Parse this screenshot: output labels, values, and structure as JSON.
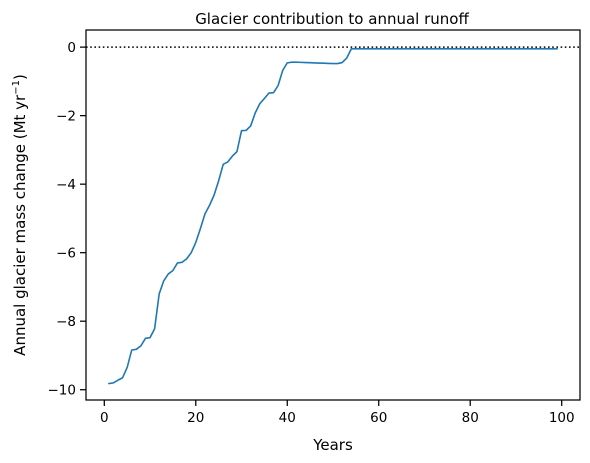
{
  "chart_data": {
    "type": "line",
    "title": "Glacier contribution to annual runoff",
    "xlabel": "Years",
    "ylabel_main": "Annual glacier mass change (Mt yr",
    "ylabel_sup": "−1",
    "ylabel_close": ")",
    "xlim": [
      -4,
      104
    ],
    "ylim": [
      -10.3,
      0.5
    ],
    "xticks": [
      0,
      20,
      40,
      60,
      80,
      100
    ],
    "xtick_labels": [
      "0",
      "20",
      "40",
      "60",
      "80",
      "100"
    ],
    "yticks": [
      0,
      -2,
      -4,
      -6,
      -8,
      -10
    ],
    "ytick_labels": [
      "0",
      "−2",
      "−4",
      "−6",
      "−8",
      "−10"
    ],
    "grid": false,
    "reference_line": {
      "y": 0,
      "style": "dotted",
      "color": "#000000"
    },
    "series": [
      {
        "color": "#1f77b4",
        "x": [
          1,
          2,
          3,
          4,
          5,
          6,
          7,
          8,
          9,
          10,
          11,
          12,
          13,
          14,
          15,
          16,
          17,
          18,
          19,
          20,
          21,
          22,
          23,
          24,
          25,
          26,
          27,
          28,
          29,
          30,
          31,
          32,
          33,
          34,
          35,
          36,
          37,
          38,
          39,
          40,
          41,
          42,
          43,
          44,
          45,
          46,
          47,
          48,
          49,
          50,
          51,
          52,
          53,
          54,
          55,
          56,
          57,
          58,
          59,
          60,
          61,
          62,
          63,
          64,
          65,
          66,
          67,
          68,
          69,
          70,
          71,
          72,
          73,
          74,
          75,
          76,
          77,
          78,
          79,
          80,
          81,
          82,
          83,
          84,
          85,
          86,
          87,
          88,
          89,
          90,
          91,
          92,
          93,
          94,
          95,
          96,
          97,
          98,
          99
        ],
        "y": [
          -9.82,
          -9.8,
          -9.72,
          -9.65,
          -9.35,
          -8.84,
          -8.82,
          -8.72,
          -8.5,
          -8.48,
          -8.22,
          -7.2,
          -6.82,
          -6.62,
          -6.52,
          -6.3,
          -6.28,
          -6.18,
          -6.0,
          -5.7,
          -5.3,
          -4.87,
          -4.62,
          -4.32,
          -3.9,
          -3.42,
          -3.35,
          -3.18,
          -3.05,
          -2.44,
          -2.43,
          -2.3,
          -1.92,
          -1.65,
          -1.5,
          -1.34,
          -1.33,
          -1.12,
          -0.68,
          -0.46,
          -0.44,
          -0.44,
          -0.445,
          -0.45,
          -0.455,
          -0.46,
          -0.465,
          -0.47,
          -0.475,
          -0.48,
          -0.48,
          -0.45,
          -0.32,
          -0.05,
          -0.05,
          -0.05,
          -0.05,
          -0.05,
          -0.05,
          -0.05,
          -0.05,
          -0.05,
          -0.05,
          -0.05,
          -0.05,
          -0.05,
          -0.05,
          -0.05,
          -0.05,
          -0.05,
          -0.05,
          -0.05,
          -0.05,
          -0.05,
          -0.05,
          -0.05,
          -0.05,
          -0.05,
          -0.05,
          -0.05,
          -0.05,
          -0.05,
          -0.05,
          -0.05,
          -0.05,
          -0.05,
          -0.05,
          -0.05,
          -0.05,
          -0.05,
          -0.05,
          -0.05,
          -0.05,
          -0.05,
          -0.05,
          -0.05,
          -0.05,
          -0.05,
          -0.05
        ]
      }
    ]
  }
}
